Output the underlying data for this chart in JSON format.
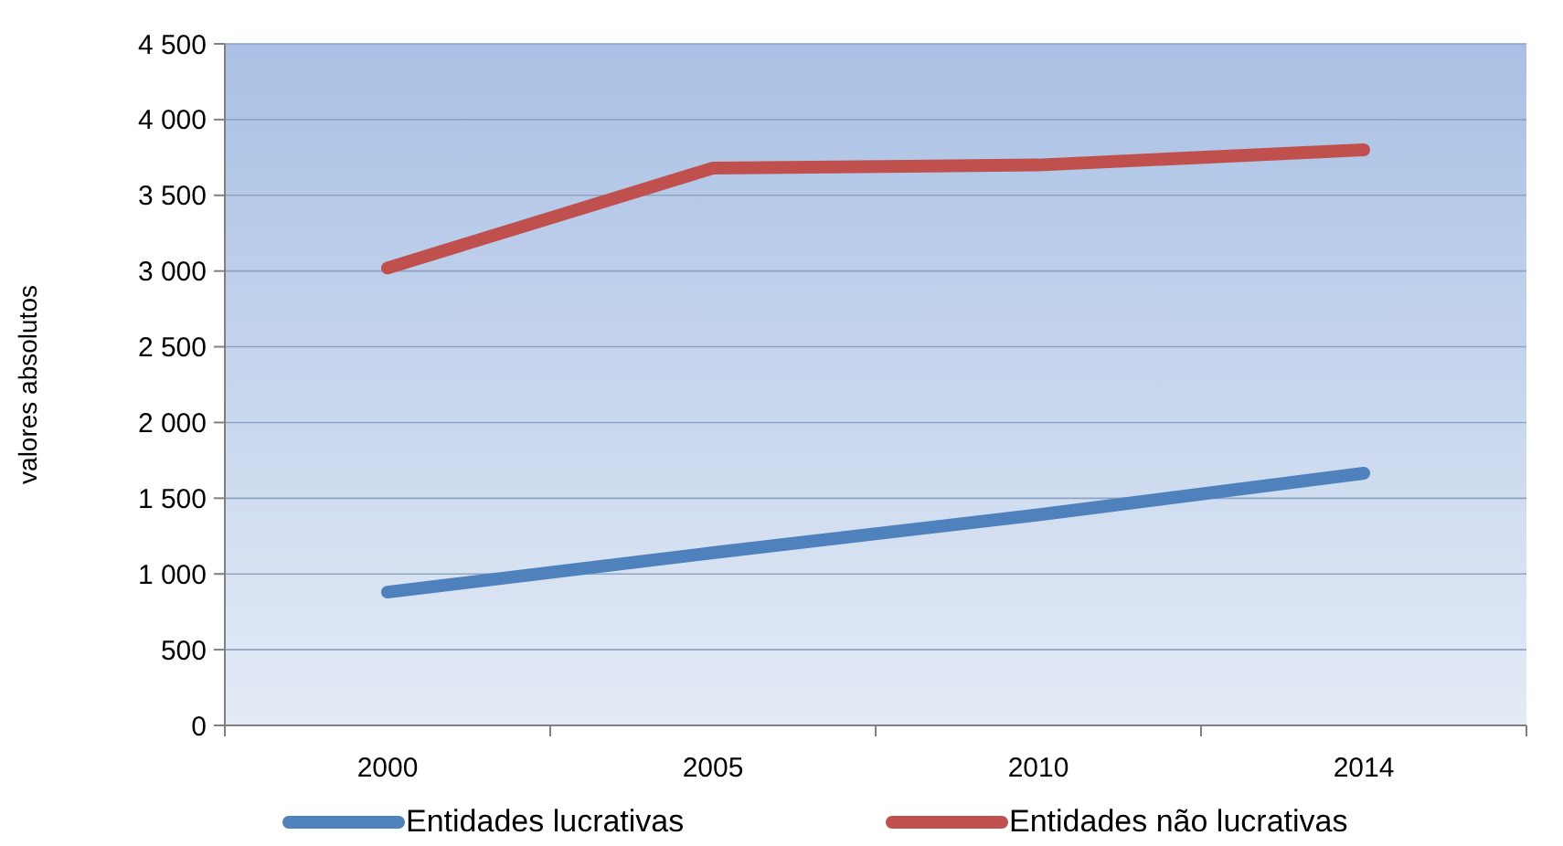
{
  "chart_data": {
    "type": "line",
    "ylabel": "valores absolutos",
    "categories": [
      "2000",
      "2005",
      "2010",
      "2014"
    ],
    "series": [
      {
        "name": "Entidades lucrativas",
        "color": "#4f81bd",
        "values": [
          880,
          1140,
          1390,
          1665
        ]
      },
      {
        "name": "Entidades não lucrativas",
        "color": "#c0504d",
        "values": [
          3020,
          3680,
          3700,
          3800
        ]
      }
    ],
    "ylim": [
      0,
      4500
    ],
    "yticks": [
      0,
      500,
      {
        "value": 1000,
        "label": "1 000"
      },
      {
        "value": 1500,
        "label": "1 500"
      },
      {
        "value": 2000,
        "label": "2 000"
      },
      {
        "value": 2500,
        "label": "2 500"
      },
      {
        "value": 3000,
        "label": "3 000"
      },
      {
        "value": 3500,
        "label": "3 500"
      },
      {
        "value": 4000,
        "label": "4 000"
      },
      {
        "value": 4500,
        "label": "4 500"
      }
    ],
    "grid": "y",
    "legend": "bottom",
    "marker": "none",
    "line_style": "solid"
  }
}
